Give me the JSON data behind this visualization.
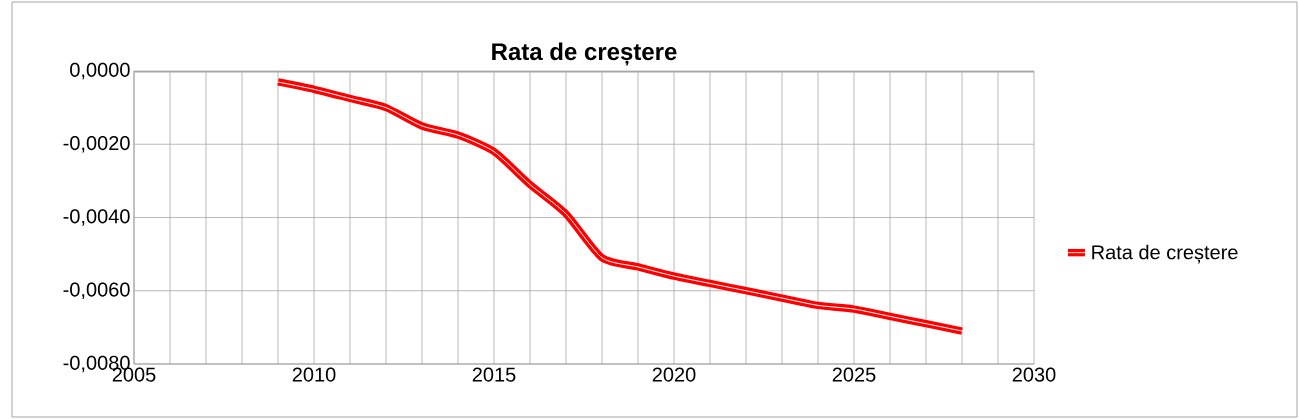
{
  "chart_data": {
    "type": "line",
    "title": "Rata de creștere",
    "x": [
      2009,
      2010,
      2011,
      2012,
      2013,
      2014,
      2015,
      2016,
      2017,
      2018,
      2019,
      2020,
      2021,
      2022,
      2023,
      2024,
      2025,
      2026,
      2027,
      2028
    ],
    "series": [
      {
        "name": "Rata de creștere",
        "color": "#ff0000",
        "values": [
          -0.0003,
          -0.0005,
          -0.00075,
          -0.001,
          -0.0015,
          -0.00175,
          -0.0022,
          -0.0031,
          -0.0039,
          -0.0051,
          -0.00535,
          -0.0056,
          -0.0058,
          -0.006,
          -0.0062,
          -0.0064,
          -0.0065,
          -0.0067,
          -0.0069,
          -0.0071
        ]
      }
    ],
    "xlim": [
      2005,
      2030
    ],
    "xticks": [
      2005,
      {
        "value": 2006,
        "label": null
      },
      {
        "value": 2007,
        "label": null
      },
      {
        "value": 2008,
        "label": null
      },
      {
        "value": 2009,
        "label": null
      },
      2010,
      {
        "value": 2011,
        "label": null
      },
      {
        "value": 2012,
        "label": null
      },
      {
        "value": 2013,
        "label": null
      },
      {
        "value": 2014,
        "label": null
      },
      2015,
      {
        "value": 2016,
        "label": null
      },
      {
        "value": 2017,
        "label": null
      },
      {
        "value": 2018,
        "label": null
      },
      {
        "value": 2019,
        "label": null
      },
      2020,
      {
        "value": 2021,
        "label": null
      },
      {
        "value": 2022,
        "label": null
      },
      {
        "value": 2023,
        "label": null
      },
      {
        "value": 2024,
        "label": null
      },
      2025,
      {
        "value": 2026,
        "label": null
      },
      {
        "value": 2027,
        "label": null
      },
      {
        "value": 2028,
        "label": null
      },
      {
        "value": 2029,
        "label": null
      },
      2030
    ],
    "ylim": [
      -0.008,
      0
    ],
    "yticks": [
      {
        "value": -0.008,
        "label": "-0,0080"
      },
      {
        "value": -0.006,
        "label": "-0,0060"
      },
      {
        "value": -0.004,
        "label": "-0,0040"
      },
      {
        "value": -0.002,
        "label": "-0,0020"
      },
      {
        "value": 0,
        "label": "0,0000"
      }
    ],
    "grid": true,
    "legend": "right",
    "marker": "none",
    "line_style": "solid"
  }
}
